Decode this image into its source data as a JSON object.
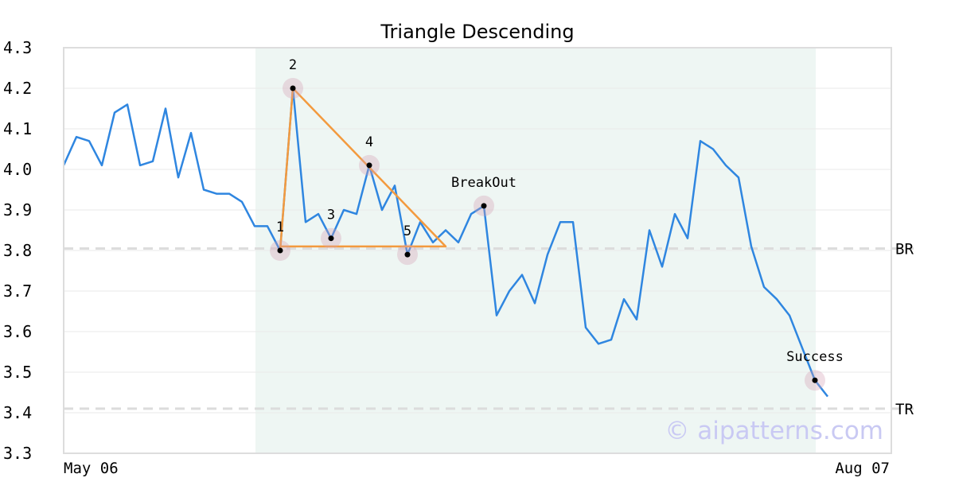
{
  "chart_data": {
    "type": "line",
    "title": "Triangle Descending",
    "ylim": [
      3.3,
      4.3
    ],
    "yticks": [
      "4.3",
      "4.2",
      "4.1",
      "4.0",
      "3.9",
      "3.8",
      "3.7",
      "3.6",
      "3.5",
      "3.4",
      "3.3"
    ],
    "x_labels": [
      "May 06",
      "Aug 07"
    ],
    "grid": true,
    "series": [
      {
        "color": "#2f86e0",
        "values": [
          4.01,
          4.08,
          4.07,
          4.01,
          4.14,
          4.16,
          4.01,
          4.02,
          4.15,
          3.98,
          4.09,
          3.95,
          3.94,
          3.94,
          3.92,
          3.86,
          3.86,
          3.8,
          4.2,
          3.87,
          3.89,
          3.83,
          3.9,
          3.89,
          4.01,
          3.9,
          3.96,
          3.79,
          3.87,
          3.82,
          3.85,
          3.82,
          3.89,
          3.91,
          3.64,
          3.7,
          3.74,
          3.67,
          3.79,
          3.87,
          3.87,
          3.61,
          3.57,
          3.58,
          3.68,
          3.63,
          3.85,
          3.76,
          3.89,
          3.83,
          4.07,
          4.05,
          4.01,
          3.98,
          3.81,
          3.71,
          3.68,
          3.64,
          3.56,
          3.48,
          3.44
        ]
      }
    ],
    "shaded_region": {
      "from_index": 15,
      "to_index": 59,
      "color": "#eef6f3"
    },
    "triangle": {
      "color": "#f39a3e",
      "points": [
        {
          "index": 17,
          "value": 3.8
        },
        {
          "index": 18,
          "value": 4.2
        },
        {
          "index": 30,
          "value": 3.81
        },
        {
          "index": 17,
          "value": 3.81
        }
      ]
    },
    "pivots": [
      {
        "label": "1",
        "index": 17,
        "value": 3.8
      },
      {
        "label": "2",
        "index": 18,
        "value": 4.2
      },
      {
        "label": "3",
        "index": 21,
        "value": 3.83
      },
      {
        "label": "4",
        "index": 24,
        "value": 4.01
      },
      {
        "label": "5",
        "index": 27,
        "value": 3.79
      },
      {
        "label": "BreakOut",
        "index": 33,
        "value": 3.91
      },
      {
        "label": "Success",
        "index": 59,
        "value": 3.48
      }
    ],
    "hlines": [
      {
        "label": "BR",
        "value": 3.805
      },
      {
        "label": "TR",
        "value": 3.41
      }
    ],
    "watermark": "© aipatterns.com"
  }
}
